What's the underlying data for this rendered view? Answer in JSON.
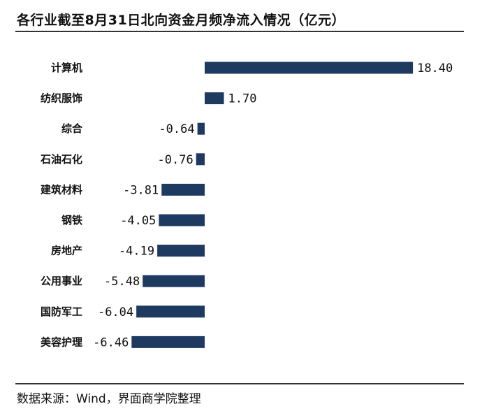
{
  "header": {
    "title": "各行业截至8月31日北向资金月频净流入情况（亿元）"
  },
  "footer": {
    "source": "数据来源：Wind，界面商学院整理"
  },
  "chart_data": {
    "type": "bar",
    "orientation": "horizontal",
    "categories": [
      "计算机",
      "纺织服饰",
      "综合",
      "石油石化",
      "建筑材料",
      "钢铁",
      "房地产",
      "公用事业",
      "国防军工",
      "美容护理"
    ],
    "values": [
      18.4,
      1.7,
      -0.64,
      -0.76,
      -3.81,
      -4.05,
      -4.19,
      -5.48,
      -6.04,
      -6.46
    ],
    "value_labels": [
      "18.40",
      "1.70",
      "-0.64",
      "-0.76",
      "-3.81",
      "-4.05",
      "-4.19",
      "-5.48",
      "-6.04",
      "-6.46"
    ],
    "title": "各行业截至8月31日北向资金月频净流入情况（亿元）",
    "bar_color": "#1f3a60",
    "grid": false,
    "legend": "none"
  }
}
